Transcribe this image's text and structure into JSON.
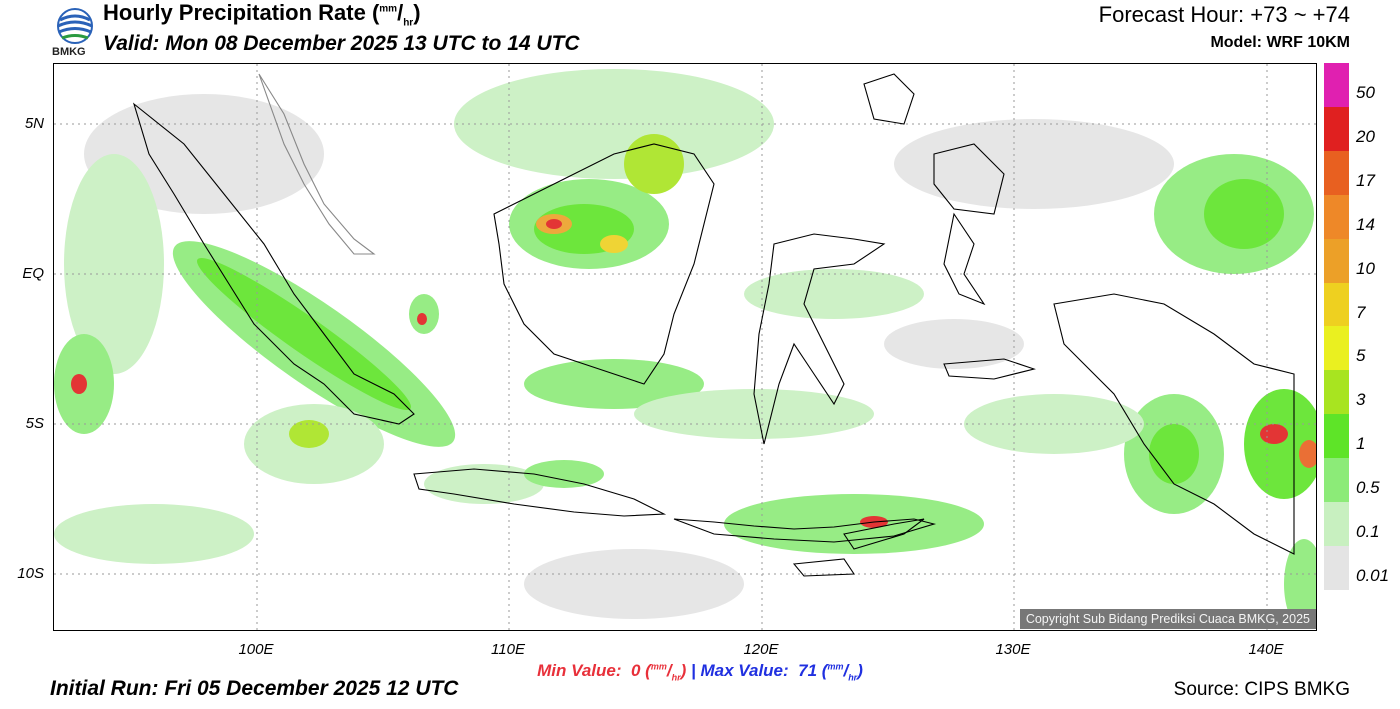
{
  "header": {
    "title": "Hourly Precipitation Rate (",
    "title_unit_sup": "mm",
    "title_unit_sub": "hr",
    "title_close": ")",
    "valid": "Valid: Mon 08 December 2025 13 UTC to 14 UTC",
    "forecast_hour": "Forecast Hour: +73 ~ +74",
    "model": "Model: WRF 10KM",
    "logo_text": "BMKG"
  },
  "map": {
    "y_ticks": [
      "5N",
      "EQ",
      "5S",
      "10S"
    ],
    "x_ticks": [
      "100E",
      "110E",
      "120E",
      "130E",
      "140E"
    ],
    "copyright": "Copyright Sub Bidang Prediksi Cuaca BMKG, 2025"
  },
  "colorbar": {
    "labels": [
      "50",
      "20",
      "17",
      "14",
      "10",
      "7",
      "5",
      "3",
      "1",
      "0.5",
      "0.1",
      "0.01"
    ],
    "colors": [
      "#e020b0",
      "#e02020",
      "#e86020",
      "#ee8828",
      "#eca028",
      "#eed020",
      "#eaf020",
      "#a8e420",
      "#5ee428",
      "#8ceb78",
      "#c8f0c0",
      "#e4e4e4"
    ]
  },
  "footer": {
    "min_label": "Min Value:",
    "min_value": "0",
    "max_label": "Max Value:",
    "max_value": "71",
    "unit_sup": "mm",
    "unit_sub": "hr",
    "initial_run": "Initial Run: Fri 05 December 2025 12 UTC",
    "source": "Source: CIPS BMKG"
  }
}
